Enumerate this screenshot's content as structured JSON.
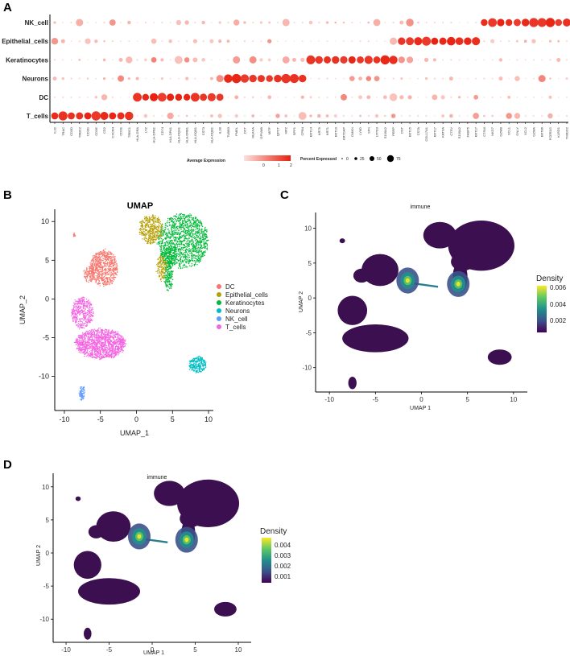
{
  "panels": {
    "a": "A",
    "b": "B",
    "c": "C",
    "d": "D"
  },
  "colors": {
    "DC": "#f8766d",
    "Epithelial_cells": "#b79f00",
    "Keratinocytes": "#00ba38",
    "Neurons": "#00bfc4",
    "NK_cell": "#619cff",
    "T_cells": "#f564e3",
    "dot_low": "#fde0dc",
    "dot_high": "#e8200f",
    "density_bg": "#3b0f50",
    "viridis": [
      "#440154",
      "#3b528b",
      "#21908c",
      "#5dc863",
      "#fde725"
    ]
  },
  "chart_data": [
    {
      "type": "dotplot",
      "panel": "A",
      "row_labels": [
        "NK_cell",
        "Epithelial_cells",
        "Keratinocytes",
        "Neurons",
        "DC",
        "T_cells"
      ],
      "genes": [
        "IL32",
        "TRAC",
        "CD3D",
        "TRBC2",
        "CD3G",
        "CD3E",
        "CD2",
        "CXCR4",
        "CD2E",
        "TRBC1",
        "HLA-DRA",
        "LYZ",
        "HLA-DPB1",
        "CD74",
        "HLA-DPA1",
        "HLA-DQA1",
        "HLA-DRB1",
        "HLA-DQB1",
        "CST3",
        "HLA-DQB1",
        "IL1B",
        "TUBB3",
        "PMEL",
        "DCT",
        "MLANA",
        "GPNMB",
        "MITF",
        "QPCT",
        "MPZ",
        "SPP1",
        "CPB4",
        "KRT14",
        "KRT5",
        "KRT1",
        "KRT10",
        "KRTDAP",
        "DMKN",
        "LY6D",
        "SFN",
        "LYPD3",
        "S100A2",
        "PERP",
        "DST",
        "KRT15",
        "CSTA",
        "COL17A1",
        "KRT17",
        "KRT6A",
        "CTSV",
        "S100A2",
        "FABP5",
        "KRT17",
        "CTSW",
        "NKG7",
        "GZMB",
        "XCL1",
        "GNLY",
        "XCL2",
        "GZMA",
        "KRT86",
        "FCER1G",
        "KLRD1",
        "TMIGD2"
      ],
      "gene_groups": [
        {
          "row": "T_cells",
          "count": 10
        },
        {
          "row": "DC",
          "count": 11
        },
        {
          "row": "Neurons",
          "count": 10
        },
        {
          "row": "Keratinocytes",
          "count": 11
        },
        {
          "row": "Epithelial_cells",
          "count": 10
        },
        {
          "row": "NK_cell",
          "count": 11
        }
      ],
      "legend": {
        "avg_expression_title": "Average Expression",
        "avg_expression_ticks": [
          "0",
          "1",
          "2"
        ],
        "pct_expressed_title": "Percent Expressed",
        "pct_expressed_ticks": [
          "0",
          "25",
          "50",
          "75"
        ]
      }
    },
    {
      "type": "scatter",
      "panel": "B",
      "title": "UMAP",
      "xlabel": "UMAP_1",
      "ylabel": "UMAP_2",
      "xticks": [
        -10,
        -5,
        0,
        5,
        10
      ],
      "yticks": [
        -10,
        -5,
        0,
        5,
        10
      ],
      "xlim": [
        -11,
        11
      ],
      "ylim": [
        -14,
        12
      ],
      "legend": [
        "DC",
        "Epithelial_cells",
        "Keratinocytes",
        "Neurons",
        "NK_cell",
        "T_cells"
      ],
      "clusters": [
        {
          "name": "Keratinocytes",
          "cx": 6.5,
          "cy": 7.5,
          "rx": 3.5,
          "ry": 3.5,
          "n": 1400
        },
        {
          "name": "Keratinocytes",
          "cx": 4.5,
          "cy": 5.5,
          "rx": 1.2,
          "ry": 1.2,
          "n": 180
        },
        {
          "name": "Keratinocytes",
          "cx": 4.5,
          "cy": 3,
          "rx": 0.6,
          "ry": 2.0,
          "n": 200
        },
        {
          "name": "Epithelial_cells",
          "cx": 2,
          "cy": 9,
          "rx": 1.6,
          "ry": 1.8,
          "n": 420
        },
        {
          "name": "Epithelial_cells",
          "cx": 3.5,
          "cy": 4,
          "rx": 0.7,
          "ry": 1.6,
          "n": 140
        },
        {
          "name": "DC",
          "cx": -4.5,
          "cy": 4,
          "rx": 1.9,
          "ry": 2.3,
          "n": 700
        },
        {
          "name": "DC",
          "cx": -6.5,
          "cy": 3.2,
          "rx": 0.8,
          "ry": 1.0,
          "n": 120
        },
        {
          "name": "T_cells",
          "cx": -7.5,
          "cy": -1.8,
          "rx": 1.5,
          "ry": 2.0,
          "n": 420
        },
        {
          "name": "T_cells",
          "cx": -5,
          "cy": -5.8,
          "rx": 3.5,
          "ry": 1.9,
          "n": 1400
        },
        {
          "name": "Neurons",
          "cx": 8.5,
          "cy": -8.5,
          "rx": 1.2,
          "ry": 1.0,
          "n": 260
        },
        {
          "name": "NK_cell",
          "cx": -7.5,
          "cy": -12.2,
          "rx": 0.4,
          "ry": 0.9,
          "n": 80
        },
        {
          "name": "DC",
          "cx": -8.6,
          "cy": 8.2,
          "rx": 0.25,
          "ry": 0.3,
          "n": 12
        }
      ]
    },
    {
      "type": "density",
      "panel": "C",
      "title": "immune",
      "xlabel": "UMAP 1",
      "ylabel": "UMAP 2",
      "xticks": [
        -10,
        -5,
        0,
        5,
        10
      ],
      "yticks": [
        -10,
        -5,
        0,
        5,
        10
      ],
      "legend_title": "Density",
      "legend_ticks": [
        "0.002",
        "0.004",
        "0.006"
      ],
      "hotspots": [
        {
          "x": -1.5,
          "y": 2.5
        },
        {
          "x": 4,
          "y": 2
        }
      ]
    },
    {
      "type": "density",
      "panel": "D",
      "title": "immune",
      "xlabel": "UMAP 1",
      "ylabel": "UMAP 2",
      "xticks": [
        -10,
        -5,
        0,
        5,
        10
      ],
      "yticks": [
        -10,
        -5,
        0,
        5,
        10
      ],
      "legend_title": "Density",
      "legend_ticks": [
        "0.001",
        "0.002",
        "0.003",
        "0.004"
      ],
      "hotspots": [
        {
          "x": -1.5,
          "y": 2.5
        },
        {
          "x": 4,
          "y": 2
        }
      ]
    }
  ]
}
